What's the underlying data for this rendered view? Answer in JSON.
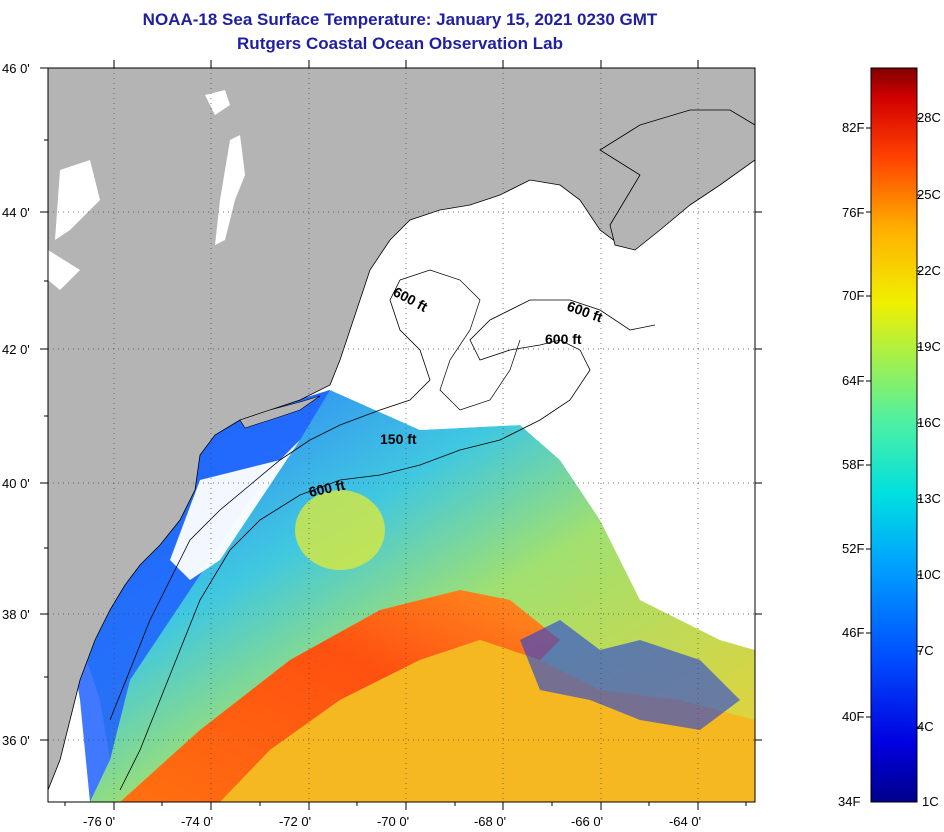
{
  "title": "NOAA-18 Sea Surface Temperature:  January 15, 2021 0230 GMT",
  "subtitle": "Rutgers Coastal Ocean Observation Lab",
  "latitude_labels": [
    "46 0'",
    "44 0'",
    "42 0'",
    "40 0'",
    "38 0'",
    "36 0'"
  ],
  "longitude_labels": [
    "-76 0'",
    "-74 0'",
    "-72 0'",
    "-70 0'",
    "-68 0'",
    "-66 0'",
    "-64 0'"
  ],
  "contour_labels": [
    "600 ft",
    "600 ft",
    "600 ft",
    "150 ft",
    "600 ft"
  ],
  "colorbar": {
    "fahrenheit": [
      "82F",
      "76F",
      "70F",
      "64F",
      "58F",
      "52F",
      "46F",
      "40F",
      "34F"
    ],
    "celsius": [
      "28C",
      "25C",
      "22C",
      "19C",
      "16C",
      "13C",
      "10C",
      "7C",
      "4C",
      "1C"
    ]
  },
  "colors": {
    "title": "#1f1fa0",
    "land": "#b4b4b4",
    "cloud": "#ffffff"
  }
}
